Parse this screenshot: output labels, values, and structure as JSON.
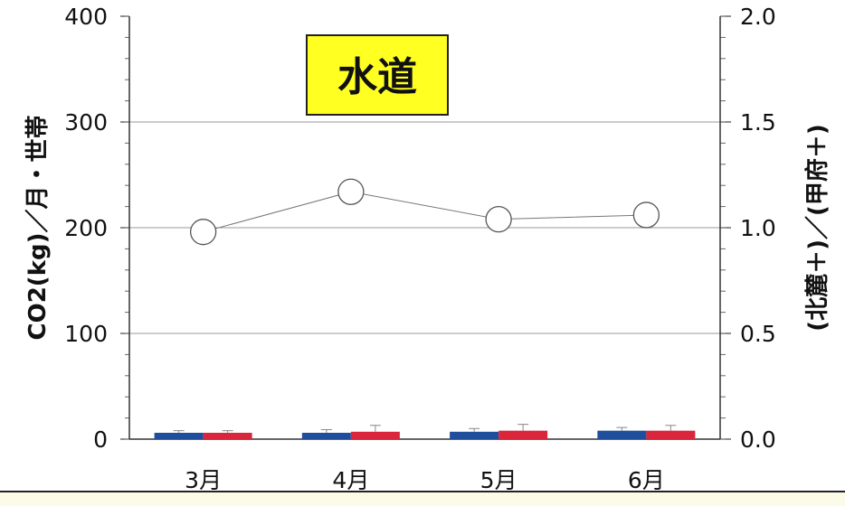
{
  "chart_data": {
    "type": "bar",
    "title": "水道",
    "categories": [
      "3月",
      "4月",
      "5月",
      "6月"
    ],
    "ylabel": "CO2(kg)／月・世帯",
    "y2label": "(北麓＋)／(甲府＋)",
    "ylim": [
      0,
      400
    ],
    "y2lim": [
      0,
      2.0
    ],
    "yticks": [
      "400",
      "300",
      "200",
      "100",
      "0"
    ],
    "y2ticks": [
      "2.0",
      "1.5",
      "1.0",
      "0.5",
      "0.0"
    ],
    "grid": true,
    "series": [
      {
        "axis": "left",
        "kind": "bar",
        "color": "#1f4e9c",
        "values": [
          6,
          6,
          7,
          8
        ],
        "errors": [
          2,
          3,
          3,
          3
        ]
      },
      {
        "axis": "left",
        "kind": "bar",
        "color": "#d9263a",
        "values": [
          6,
          7,
          8,
          8
        ],
        "errors": [
          2,
          6,
          6,
          5
        ]
      },
      {
        "axis": "right",
        "kind": "line",
        "color": "#777777",
        "marker": "open-circle",
        "values": [
          0.98,
          1.17,
          1.04,
          1.06
        ]
      }
    ],
    "badge_color": "#ffff22"
  }
}
